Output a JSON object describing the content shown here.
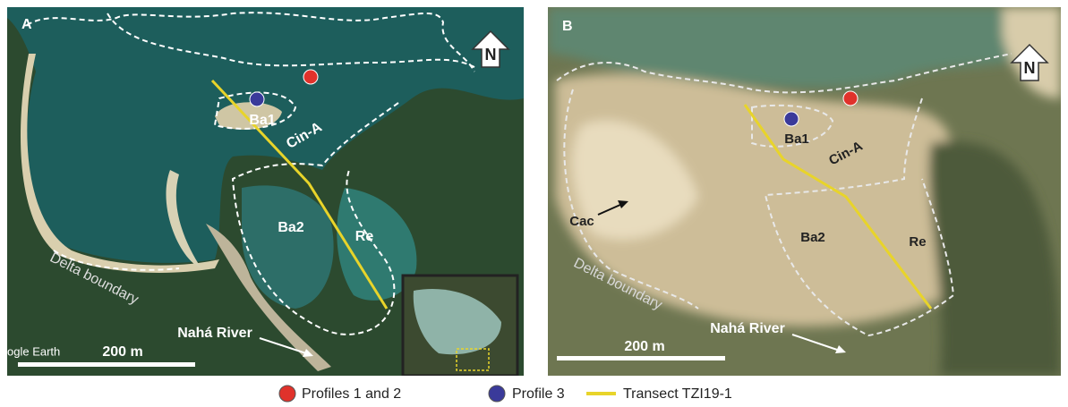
{
  "panels": [
    {
      "label": "A",
      "north": "N",
      "regions": [
        "Ba1",
        "Cin-A",
        "Ba2",
        "Re"
      ],
      "delta_boundary": "Delta boundary",
      "river": "Nahá River",
      "scale": "200 m",
      "source": "ogle Earth"
    },
    {
      "label": "B",
      "north": "N",
      "regions": [
        "Ba1",
        "Cin-A",
        "Cac",
        "Ba2",
        "Re"
      ],
      "delta_boundary": "Delta boundary",
      "river": "Nahá River",
      "scale": "200 m"
    }
  ],
  "legend": [
    "Profiles 1 and 2",
    "Profile 3",
    "Transect TZI19-1"
  ]
}
